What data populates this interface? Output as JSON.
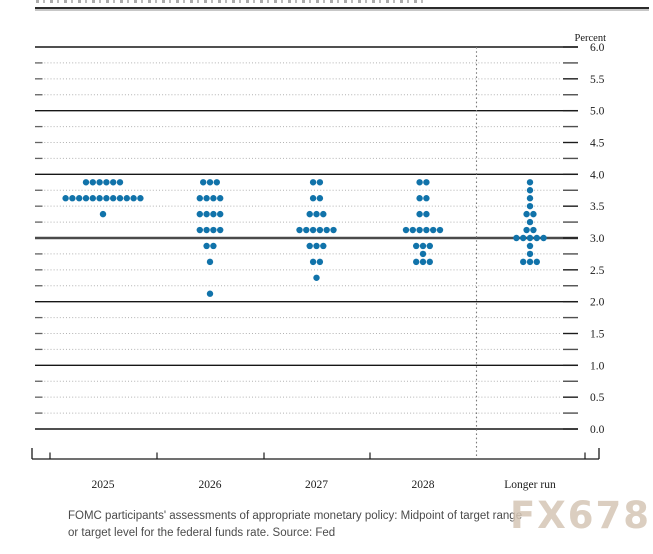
{
  "watermark": "FX678",
  "caption": {
    "line1": "FOMC participants' assessments of appropriate monetary policy: Midpoint of target range",
    "line2": "or target level for the federal funds rate. Source: Fed"
  },
  "chart_data": {
    "type": "scatter",
    "subtype": "fomc-dot-plot",
    "title": "",
    "unit_label": "Percent",
    "xlabel": "",
    "ylabel": "Percent",
    "categories": [
      "2025",
      "2026",
      "2027",
      "2028",
      "Longer run"
    ],
    "y_axis": {
      "min": 0.0,
      "max": 6.0,
      "grid_step": 0.25,
      "label_step": 0.5,
      "tick_labels": [
        "6.0",
        "5.5",
        "5.0",
        "4.5",
        "4.0",
        "3.5",
        "3.0",
        "2.5",
        "2.0",
        "1.5",
        "1.0",
        "0.5",
        "0.0"
      ]
    },
    "grid": "solid lines at integers, dotted lines at quarter points",
    "separator_after_category": "2028",
    "dot_color": "#1173aa",
    "series": [
      {
        "category": "2025",
        "dots": [
          {
            "rate": 3.875,
            "count": 6
          },
          {
            "rate": 3.625,
            "count": 12
          },
          {
            "rate": 3.375,
            "count": 1
          }
        ]
      },
      {
        "category": "2026",
        "dots": [
          {
            "rate": 3.875,
            "count": 3
          },
          {
            "rate": 3.625,
            "count": 4
          },
          {
            "rate": 3.375,
            "count": 4
          },
          {
            "rate": 3.125,
            "count": 4
          },
          {
            "rate": 2.875,
            "count": 2
          },
          {
            "rate": 2.625,
            "count": 1
          },
          {
            "rate": 2.125,
            "count": 1
          }
        ]
      },
      {
        "category": "2027",
        "dots": [
          {
            "rate": 3.875,
            "count": 2
          },
          {
            "rate": 3.625,
            "count": 2
          },
          {
            "rate": 3.375,
            "count": 3
          },
          {
            "rate": 3.125,
            "count": 6
          },
          {
            "rate": 2.875,
            "count": 3
          },
          {
            "rate": 2.625,
            "count": 2
          },
          {
            "rate": 2.375,
            "count": 1
          }
        ]
      },
      {
        "category": "2028",
        "dots": [
          {
            "rate": 3.875,
            "count": 2
          },
          {
            "rate": 3.625,
            "count": 2
          },
          {
            "rate": 3.375,
            "count": 2
          },
          {
            "rate": 3.125,
            "count": 6
          },
          {
            "rate": 2.875,
            "count": 3
          },
          {
            "rate": 2.75,
            "count": 1
          },
          {
            "rate": 2.625,
            "count": 3
          }
        ]
      },
      {
        "category": "Longer run",
        "dots": [
          {
            "rate": 3.875,
            "count": 1
          },
          {
            "rate": 3.75,
            "count": 1
          },
          {
            "rate": 3.625,
            "count": 1
          },
          {
            "rate": 3.5,
            "count": 1
          },
          {
            "rate": 3.375,
            "count": 2
          },
          {
            "rate": 3.25,
            "count": 1
          },
          {
            "rate": 3.125,
            "count": 2
          },
          {
            "rate": 3.0,
            "count": 5
          },
          {
            "rate": 2.875,
            "count": 1
          },
          {
            "rate": 2.75,
            "count": 1
          },
          {
            "rate": 2.625,
            "count": 3
          }
        ]
      }
    ]
  }
}
